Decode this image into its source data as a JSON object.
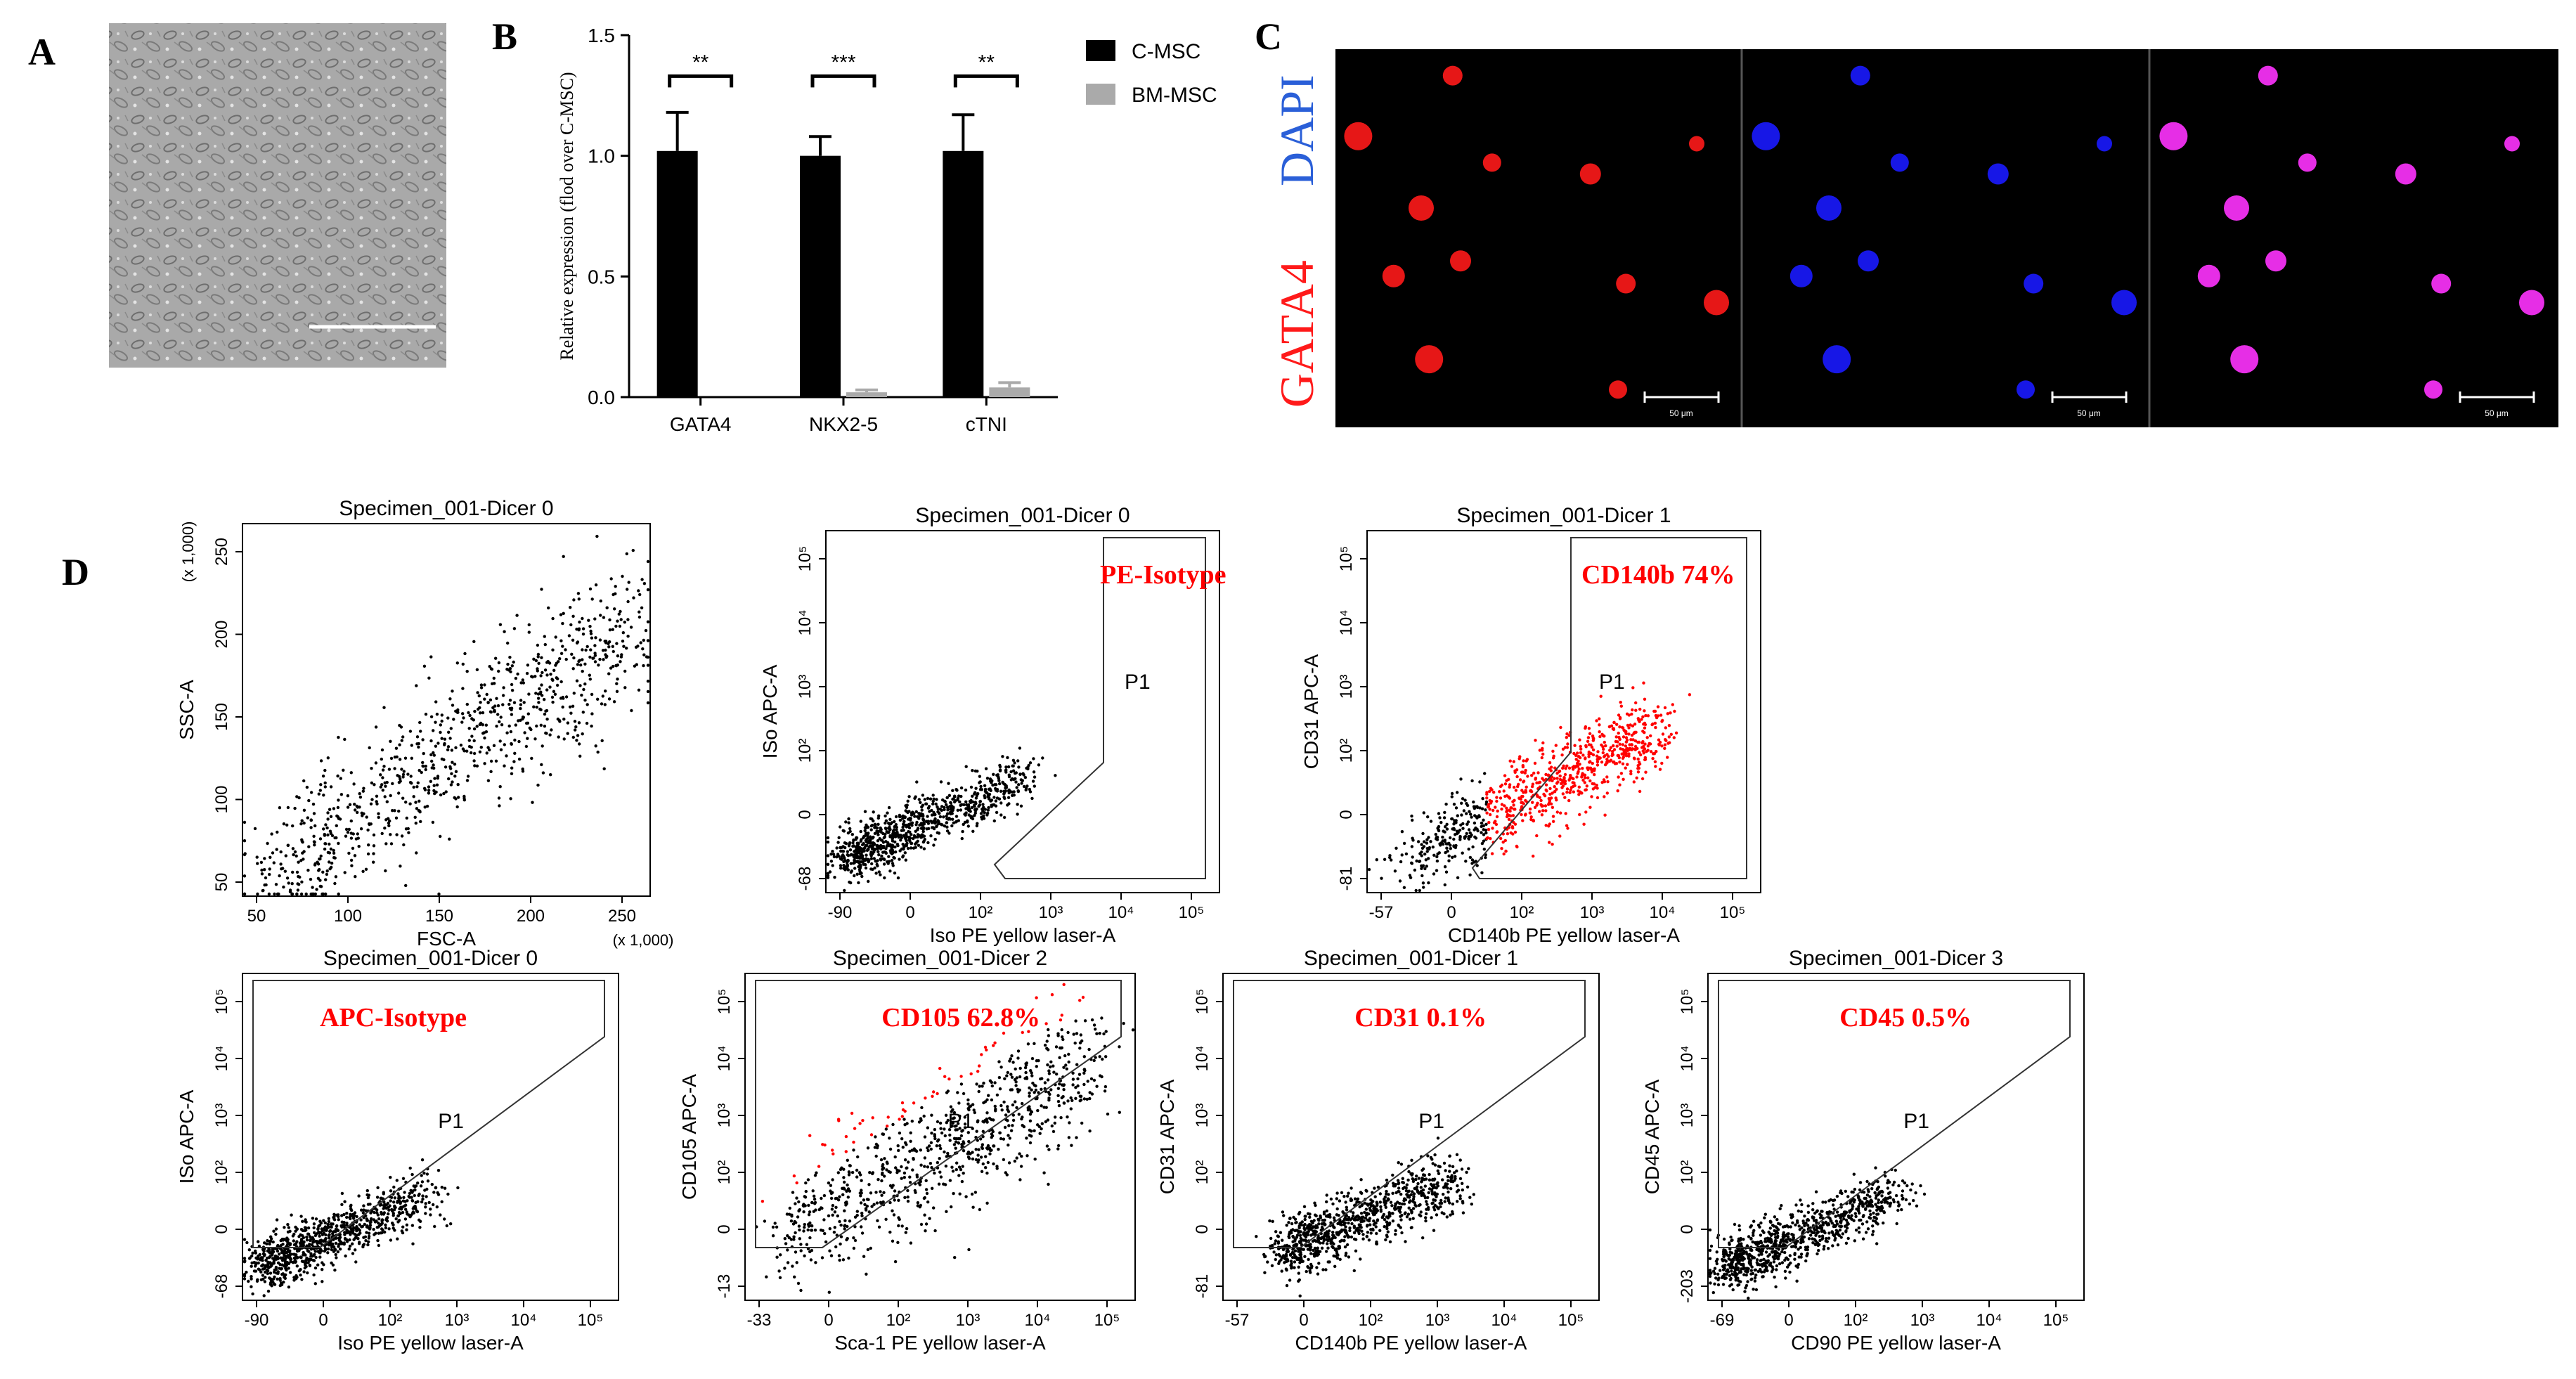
{
  "figure": {
    "panel_labels": [
      "A",
      "B",
      "C",
      "D"
    ]
  },
  "panel_a": {
    "image": "phase-contrast-micrograph-cells",
    "has_scale_bar": true
  },
  "panel_b": {
    "chart_data": {
      "type": "bar",
      "categories": [
        "GATA4",
        "NKX2-5",
        "cTNI"
      ],
      "series": [
        {
          "name": "C-MSC",
          "values": [
            1.02,
            1.0,
            1.02
          ],
          "errors": [
            0.16,
            0.08,
            0.15
          ],
          "color": "#000000"
        },
        {
          "name": "BM-MSC",
          "values": [
            0.0,
            0.02,
            0.04
          ],
          "errors": [
            0.0,
            0.01,
            0.02
          ],
          "color": "#aaaaaa"
        }
      ],
      "ylabel": "Relative expression (flod over C-MSC)",
      "ylim": [
        0,
        1.5
      ],
      "yticks": [
        "0.0",
        "0.5",
        "1.0",
        "1.5"
      ],
      "significance": [
        "**",
        "***",
        "**"
      ],
      "legend_position": "top-right",
      "grid": false
    }
  },
  "panel_c": {
    "label_gata4": "GATA4",
    "label_dapi": "DAPI",
    "scale_text": "50 μm",
    "colors": {
      "gata4": "#ff1a1a",
      "dapi": "#1a1aff",
      "merge": "#ff33ff"
    }
  },
  "panel_d": {
    "plots": [
      {
        "id": "fsc-ssc",
        "title": "Specimen_001-Dicer 0",
        "xlabel": "FSC-A",
        "ylabel": "SSC-A",
        "xticks": [
          "50",
          "100",
          "150",
          "200",
          "250"
        ],
        "yticks": [
          "50",
          "100",
          "150",
          "200",
          "250"
        ],
        "y_multiplier": "(x 1,000)",
        "x_multiplier": "(x 1,000)",
        "gate_label": "",
        "annotation": ""
      },
      {
        "id": "pe-isotype",
        "title": "Specimen_001-Dicer 0",
        "xlabel": "Iso PE yellow laser-A",
        "ylabel": "ISo APC-A",
        "xticks": [
          "-90",
          "0",
          "10²",
          "10³",
          "10⁴",
          "10⁵"
        ],
        "yticks": [
          "-68",
          "0",
          "10²",
          "10³",
          "10⁴",
          "10⁵"
        ],
        "gate_label": "P1",
        "annotation": "PE-Isotype"
      },
      {
        "id": "cd140b",
        "title": "Specimen_001-Dicer 1",
        "xlabel": "CD140b PE yellow laser-A",
        "ylabel": "CD31 APC-A",
        "xticks": [
          "-57",
          "0",
          "10²",
          "10³",
          "10⁴",
          "10⁵"
        ],
        "yticks": [
          "-81",
          "0",
          "10²",
          "10³",
          "10⁴",
          "10⁵"
        ],
        "gate_label": "P1",
        "annotation": "CD140b 74%"
      },
      {
        "id": "apc-isotype",
        "title": "Specimen_001-Dicer 0",
        "xlabel": "Iso PE yellow laser-A",
        "ylabel": "ISo APC-A",
        "xticks": [
          "-90",
          "0",
          "10²",
          "10³",
          "10⁴",
          "10⁵"
        ],
        "yticks": [
          "-68",
          "0",
          "10²",
          "10³",
          "10⁴",
          "10⁵"
        ],
        "gate_label": "P1",
        "annotation": "APC-Isotype"
      },
      {
        "id": "cd105",
        "title": "Specimen_001-Dicer 2",
        "xlabel": "Sca-1 PE yellow laser-A",
        "ylabel": "CD105 APC-A",
        "xticks": [
          "-33",
          "0",
          "10²",
          "10³",
          "10⁴",
          "10⁵"
        ],
        "yticks": [
          "-13",
          "0",
          "10²",
          "10³",
          "10⁴",
          "10⁵"
        ],
        "gate_label": "P1",
        "annotation": "CD105 62.8%"
      },
      {
        "id": "cd31",
        "title": "Specimen_001-Dicer 1",
        "xlabel": "CD140b PE yellow laser-A",
        "ylabel": "CD31 APC-A",
        "xticks": [
          "-57",
          "0",
          "10²",
          "10³",
          "10⁴",
          "10⁵"
        ],
        "yticks": [
          "-81",
          "0",
          "10²",
          "10³",
          "10⁴",
          "10⁵"
        ],
        "gate_label": "P1",
        "annotation": "CD31 0.1%"
      },
      {
        "id": "cd45",
        "title": "Specimen_001-Dicer 3",
        "xlabel": "CD90 PE yellow laser-A",
        "ylabel": "CD45 APC-A",
        "xticks": [
          "-69",
          "0",
          "10²",
          "10³",
          "10⁴",
          "10⁵"
        ],
        "yticks": [
          "-203",
          "0",
          "10²",
          "10³",
          "10⁴",
          "10⁵"
        ],
        "gate_label": "P1",
        "annotation": "CD45 0.5%"
      }
    ]
  }
}
